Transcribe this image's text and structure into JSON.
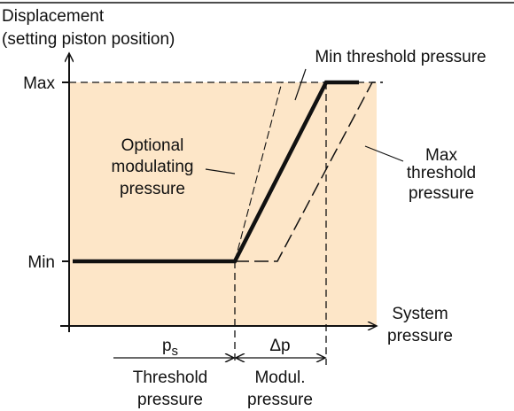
{
  "y_axis": {
    "label_lines": [
      "Displacement",
      "(setting piston position)"
    ],
    "max": "Max",
    "min": "Min"
  },
  "x_axis": {
    "label_lines": [
      "System",
      "pressure"
    ]
  },
  "curves": {
    "min_threshold": "Min threshold pressure",
    "optional": [
      "Optional",
      "modulating",
      "pressure"
    ],
    "max_threshold": [
      "Max",
      "threshold",
      "pressure"
    ]
  },
  "dimensions": {
    "ps": {
      "symbol": "p",
      "subscript": "s",
      "caption": [
        "Threshold",
        "pressure"
      ]
    },
    "dp": {
      "symbol": "Δp",
      "caption": [
        "Modul.",
        "pressure"
      ]
    }
  }
}
